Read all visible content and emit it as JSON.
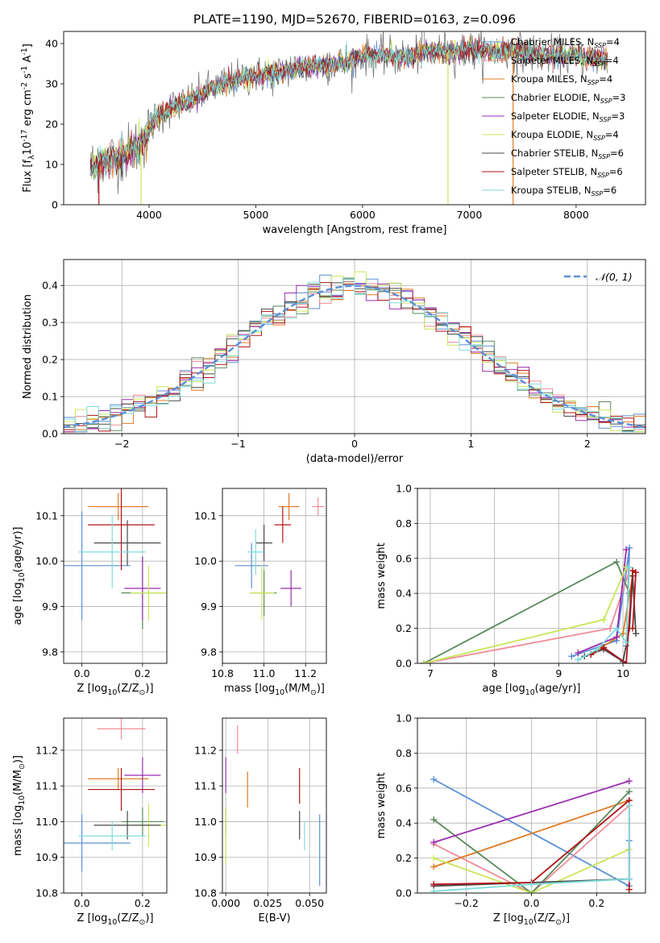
{
  "figure": {
    "title": "PLATE=1190, MJD=52670, FIBERID=0163, z=0.096"
  },
  "colors": {
    "Chabrier MILES": "#5b8fd6",
    "Salpeter MILES": "#f08c98",
    "Kroupa MILES": "#e07b22",
    "Chabrier ELODIE": "#5b8a5d",
    "Salpeter ELODIE": "#9b2fb0",
    "Kroupa ELODIE": "#c8e65a",
    "Chabrier STELIB": "#4a4a4a",
    "Salpeter STELIB": "#b0141a",
    "Kroupa STELIB": "#7fdcdc",
    "gaussian": "#5b8fd6",
    "spectrum": "#777777"
  },
  "chart_data": [
    {
      "id": "spectrum",
      "type": "line",
      "title": "PLATE=1190, MJD=52670, FIBERID=0163, z=0.096",
      "xlabel": "wavelength [Angstrom, rest frame]",
      "ylabel": "Flux [f$_\\lambda$10$^{-17}$ erg cm$^{-2}$ s$^{-1}$ A$^{-1}$]",
      "xlim": [
        3200,
        8650
      ],
      "ylim": [
        0,
        43
      ],
      "xticks": [
        "4000",
        "5000",
        "6000",
        "7000",
        "8000"
      ],
      "yticks": [
        "0",
        "10",
        "20",
        "30",
        "40"
      ],
      "grid": false,
      "legend_position": "top-right",
      "legend": [
        {
          "label": "Chabrier MILES, N",
          "sub": "SSP",
          "suffix": "=4"
        },
        {
          "label": "Salpeter MILES, N",
          "sub": "SSP",
          "suffix": "=4"
        },
        {
          "label": "Kroupa MILES, N",
          "sub": "SSP",
          "suffix": "=4"
        },
        {
          "label": "Chabrier ELODIE, N",
          "sub": "SSP",
          "suffix": "=3"
        },
        {
          "label": "Salpeter ELODIE, N",
          "sub": "SSP",
          "suffix": "=3"
        },
        {
          "label": "Kroupa ELODIE, N",
          "sub": "SSP",
          "suffix": "=4"
        },
        {
          "label": "Chabrier STELIB, N",
          "sub": "SSP",
          "suffix": "=6"
        },
        {
          "label": "Salpeter STELIB, N",
          "sub": "SSP",
          "suffix": "=6"
        },
        {
          "label": "Kroupa STELIB, N",
          "sub": "SSP",
          "suffix": "=6"
        }
      ],
      "continuum": {
        "x": [
          3450,
          3600,
          3800,
          3950,
          4050,
          4200,
          4400,
          4600,
          4800,
          5000,
          5200,
          5400,
          5600,
          5800,
          6000,
          6200,
          6400,
          6600,
          6800,
          7000,
          7200,
          7400,
          7600,
          7800,
          8000,
          8300
        ],
        "y": [
          9.5,
          11,
          13,
          16,
          21,
          24,
          26,
          29,
          31,
          32,
          32.5,
          34,
          34.5,
          35,
          37,
          37,
          36.5,
          38,
          38,
          38.5,
          38,
          38,
          37.5,
          37,
          37,
          36
        ]
      },
      "drops": [
        {
          "x": 3925,
          "to": 0
        },
        {
          "x": 6800,
          "to": 0
        },
        {
          "x": 7410,
          "to": 0
        },
        {
          "x": 3530,
          "to": 0
        }
      ]
    },
    {
      "id": "residuals",
      "type": "line",
      "xlabel": "(data-model)/error",
      "ylabel": "Normed distribution",
      "xlim": [
        -2.5,
        2.5
      ],
      "ylim": [
        0,
        0.47
      ],
      "xticks": [
        "−2",
        "−1",
        "0",
        "1",
        "2"
      ],
      "yticks": [
        "0.0",
        "0.1",
        "0.2",
        "0.3",
        "0.4"
      ],
      "grid": true,
      "legend_position": "top-right",
      "gaussian_label": "𝒩(0, 1)",
      "bin_width": 0.1
    },
    {
      "id": "age_vs_Z",
      "type": "scatter",
      "xlabel": "Z [log$_{10}$($Z/Z_\\odot$)]",
      "ylabel": "age  [log$_{10}$($age/yr$)]",
      "xlim": [
        -0.06,
        0.28
      ],
      "ylim": [
        9.775,
        10.16
      ],
      "xticks": [
        "0.0",
        "0.2"
      ],
      "yticks": [
        "9.8",
        "9.9",
        "10.0",
        "10.1"
      ],
      "grid": true,
      "points": [
        {
          "model": "Chabrier MILES",
          "x": 0.0,
          "xerr": 0.16,
          "y": 9.99,
          "yerr": 0.12
        },
        {
          "model": "Salpeter MILES",
          "x": 0.13,
          "xerr": 0.08,
          "y": 10.12,
          "yerr": 0.03
        },
        {
          "model": "Kroupa MILES",
          "x": 0.12,
          "xerr": 0.1,
          "y": 10.12,
          "yerr": 0.03
        },
        {
          "model": "Chabrier ELODIE",
          "x": 0.2,
          "xerr": 0.07,
          "y": 9.93,
          "yerr": 0.08
        },
        {
          "model": "Salpeter ELODIE",
          "x": 0.2,
          "xerr": 0.06,
          "y": 9.94,
          "yerr": 0.07
        },
        {
          "model": "Kroupa ELODIE",
          "x": 0.22,
          "xerr": 0.06,
          "y": 9.93,
          "yerr": 0.06
        },
        {
          "model": "Chabrier STELIB",
          "x": 0.15,
          "xerr": 0.11,
          "y": 10.04,
          "yerr": 0.05
        },
        {
          "model": "Salpeter STELIB",
          "x": 0.13,
          "xerr": 0.11,
          "y": 10.08,
          "yerr": 0.1
        },
        {
          "model": "Kroupa STELIB",
          "x": 0.1,
          "xerr": 0.11,
          "y": 10.02,
          "yerr": 0.08
        }
      ]
    },
    {
      "id": "age_vs_mass",
      "type": "scatter",
      "xlabel": "mass [log$_{10}$($M/M_\\odot$)]",
      "xlim": [
        10.8,
        11.3
      ],
      "ylim": [
        9.775,
        10.16
      ],
      "xticks": [
        "10.8",
        "11.0",
        "11.2"
      ],
      "yticks": [
        "9.8",
        "9.9",
        "10.0",
        "10.1"
      ],
      "grid": true,
      "points": [
        {
          "model": "Chabrier MILES",
          "x": 10.94,
          "xerr": 0.08,
          "y": 9.99,
          "yerr": 0.05
        },
        {
          "model": "Salpeter MILES",
          "x": 11.26,
          "xerr": 0.03,
          "y": 10.12,
          "yerr": 0.02
        },
        {
          "model": "Kroupa MILES",
          "x": 11.12,
          "xerr": 0.05,
          "y": 10.12,
          "yerr": 0.03
        },
        {
          "model": "Chabrier ELODIE",
          "x": 11.0,
          "xerr": 0.06,
          "y": 9.93,
          "yerr": 0.05
        },
        {
          "model": "Salpeter ELODIE",
          "x": 11.13,
          "xerr": 0.05,
          "y": 9.94,
          "yerr": 0.04
        },
        {
          "model": "Kroupa ELODIE",
          "x": 10.99,
          "xerr": 0.06,
          "y": 9.93,
          "yerr": 0.06
        },
        {
          "model": "Chabrier STELIB",
          "x": 11.0,
          "xerr": 0.04,
          "y": 10.04,
          "yerr": 0.04
        },
        {
          "model": "Salpeter STELIB",
          "x": 11.09,
          "xerr": 0.04,
          "y": 10.08,
          "yerr": 0.04
        },
        {
          "model": "Kroupa STELIB",
          "x": 10.96,
          "xerr": 0.04,
          "y": 10.02,
          "yerr": 0.05
        }
      ]
    },
    {
      "id": "weight_vs_age",
      "type": "line",
      "xlabel": "age  [log$_{10}$($age/yr$)]",
      "ylabel": "mass weight",
      "xlim": [
        6.8,
        10.35
      ],
      "ylim": [
        0,
        1.0
      ],
      "xticks": [
        "7",
        "8",
        "9",
        "10"
      ],
      "yticks": [
        "0.0",
        "0.2",
        "0.4",
        "0.6",
        "0.8",
        "1.0"
      ],
      "grid": true,
      "series": [
        {
          "model": "Chabrier MILES",
          "x": [
            9.2,
            9.9,
            10.1,
            10.05
          ],
          "y": [
            0.04,
            0.13,
            0.66,
            0.1
          ]
        },
        {
          "model": "Salpeter MILES",
          "x": [
            6.9,
            9.8,
            10.1
          ],
          "y": [
            0.0,
            0.2,
            0.53
          ]
        },
        {
          "model": "Kroupa MILES",
          "x": [
            9.5,
            10.0,
            10.15
          ],
          "y": [
            0.05,
            0.17,
            0.5
          ]
        },
        {
          "model": "Chabrier ELODIE",
          "x": [
            6.9,
            9.9,
            10.1
          ],
          "y": [
            0.0,
            0.58,
            0.4
          ]
        },
        {
          "model": "Salpeter ELODIE",
          "x": [
            9.3,
            9.9,
            10.05
          ],
          "y": [
            0.06,
            0.15,
            0.65
          ]
        },
        {
          "model": "Kroupa ELODIE",
          "x": [
            6.9,
            9.7,
            10.05
          ],
          "y": [
            0.0,
            0.25,
            0.55
          ]
        },
        {
          "model": "Chabrier STELIB",
          "x": [
            9.4,
            9.7,
            10.0,
            10.1,
            10.15,
            10.2
          ],
          "y": [
            0.04,
            0.08,
            0.01,
            0.2,
            0.5,
            0.17
          ]
        },
        {
          "model": "Salpeter STELIB",
          "x": [
            9.5,
            9.7,
            10.05,
            10.15,
            10.2,
            10.15
          ],
          "y": [
            0.05,
            0.09,
            0.0,
            0.53,
            0.52,
            0.2
          ]
        },
        {
          "model": "Kroupa STELIB",
          "x": [
            9.3,
            9.6,
            9.9,
            10.05,
            10.1
          ],
          "y": [
            0.02,
            0.08,
            0.2,
            0.12,
            0.55
          ]
        }
      ]
    },
    {
      "id": "mass_vs_Z",
      "type": "scatter",
      "xlabel": "Z [log$_{10}$($Z/Z_\\odot$)]",
      "ylabel": "mass [log$_{10}$($M/M_\\odot$)]",
      "xlim": [
        -0.06,
        0.28
      ],
      "ylim": [
        10.8,
        11.29
      ],
      "xticks": [
        "0.0",
        "0.2"
      ],
      "yticks": [
        "10.8",
        "10.9",
        "11.0",
        "11.1",
        "11.2"
      ],
      "grid": true,
      "points": [
        {
          "model": "Chabrier MILES",
          "x": 0.0,
          "xerr": 0.16,
          "y": 10.94,
          "yerr": 0.08
        },
        {
          "model": "Salpeter MILES",
          "x": 0.13,
          "xerr": 0.08,
          "y": 11.26,
          "yerr": 0.03
        },
        {
          "model": "Kroupa MILES",
          "x": 0.12,
          "xerr": 0.1,
          "y": 11.12,
          "yerr": 0.03
        },
        {
          "model": "Chabrier ELODIE",
          "x": 0.2,
          "xerr": 0.07,
          "y": 11.0,
          "yerr": 0.04
        },
        {
          "model": "Salpeter ELODIE",
          "x": 0.2,
          "xerr": 0.06,
          "y": 11.13,
          "yerr": 0.05
        },
        {
          "model": "Kroupa ELODIE",
          "x": 0.22,
          "xerr": 0.06,
          "y": 10.99,
          "yerr": 0.06
        },
        {
          "model": "Chabrier STELIB",
          "x": 0.15,
          "xerr": 0.11,
          "y": 10.99,
          "yerr": 0.04
        },
        {
          "model": "Salpeter STELIB",
          "x": 0.13,
          "xerr": 0.11,
          "y": 11.09,
          "yerr": 0.06
        },
        {
          "model": "Kroupa STELIB",
          "x": 0.1,
          "xerr": 0.11,
          "y": 10.96,
          "yerr": 0.04
        }
      ]
    },
    {
      "id": "mass_vs_ebv",
      "type": "scatter",
      "xlabel": "E(B-V)",
      "xlim": [
        -0.002,
        0.06
      ],
      "ylim": [
        10.8,
        11.29
      ],
      "xticks": [
        "0.000",
        "0.025",
        "0.050"
      ],
      "yticks": [
        "10.8",
        "10.9",
        "11.0",
        "11.1",
        "11.2"
      ],
      "grid": true,
      "points": [
        {
          "model": "Chabrier MILES",
          "x": 0.056,
          "xerr": 0,
          "y": 10.92,
          "yerr": 0.1
        },
        {
          "model": "Salpeter MILES",
          "x": 0.007,
          "xerr": 0,
          "y": 11.23,
          "yerr": 0.04
        },
        {
          "model": "Kroupa MILES",
          "x": 0.013,
          "xerr": 0,
          "y": 11.09,
          "yerr": 0.05
        },
        {
          "model": "Chabrier ELODIE",
          "x": 0.0,
          "xerr": 0,
          "y": 11.0,
          "yerr": 0.04
        },
        {
          "model": "Salpeter ELODIE",
          "x": 0.0,
          "xerr": 0,
          "y": 11.13,
          "yerr": 0.05
        },
        {
          "model": "Kroupa ELODIE",
          "x": 0.0,
          "xerr": 0,
          "y": 10.96,
          "yerr": 0.08
        },
        {
          "model": "Chabrier STELIB",
          "x": 0.044,
          "xerr": 0,
          "y": 10.99,
          "yerr": 0.04
        },
        {
          "model": "Salpeter STELIB",
          "x": 0.044,
          "xerr": 0,
          "y": 11.1,
          "yerr": 0.05
        },
        {
          "model": "Kroupa STELIB",
          "x": 0.047,
          "xerr": 0,
          "y": 10.96,
          "yerr": 0.04
        }
      ]
    },
    {
      "id": "weight_vs_Z",
      "type": "line",
      "xlabel": "Z [log$_{10}$($Z/Z_\\odot$)]",
      "ylabel": "mass weight",
      "xlim": [
        -0.35,
        0.35
      ],
      "ylim": [
        0,
        1.0
      ],
      "xticks": [
        "−0.2",
        "0.0",
        "0.2"
      ],
      "yticks": [
        "0.0",
        "0.2",
        "0.4",
        "0.6",
        "0.8",
        "1.0"
      ],
      "grid": true,
      "series": [
        {
          "model": "Chabrier MILES",
          "x": [
            -0.3,
            0.3,
            0.3
          ],
          "y": [
            0.65,
            0.04,
            0.3
          ]
        },
        {
          "model": "Salpeter MILES",
          "x": [
            -0.3,
            0.0,
            0.3
          ],
          "y": [
            0.28,
            0.0,
            0.5
          ]
        },
        {
          "model": "Kroupa MILES",
          "x": [
            -0.3,
            0.3
          ],
          "y": [
            0.15,
            0.53
          ]
        },
        {
          "model": "Chabrier ELODIE",
          "x": [
            -0.3,
            0.0,
            0.3
          ],
          "y": [
            0.42,
            0.0,
            0.58
          ]
        },
        {
          "model": "Salpeter ELODIE",
          "x": [
            -0.3,
            0.3
          ],
          "y": [
            0.29,
            0.64
          ]
        },
        {
          "model": "Kroupa ELODIE",
          "x": [
            -0.3,
            0.0,
            0.3
          ],
          "y": [
            0.2,
            0.0,
            0.25
          ]
        },
        {
          "model": "Chabrier STELIB",
          "x": [
            -0.3,
            0.0,
            0.3
          ],
          "y": [
            0.04,
            0.06,
            0.08
          ]
        },
        {
          "model": "Salpeter STELIB",
          "x": [
            -0.3,
            0.0,
            0.3,
            0.3
          ],
          "y": [
            0.05,
            0.06,
            0.53,
            0.02
          ]
        },
        {
          "model": "Kroupa STELIB",
          "x": [
            -0.3,
            0.0,
            0.3,
            0.3
          ],
          "y": [
            0.01,
            0.05,
            0.08,
            0.5
          ]
        }
      ]
    }
  ]
}
